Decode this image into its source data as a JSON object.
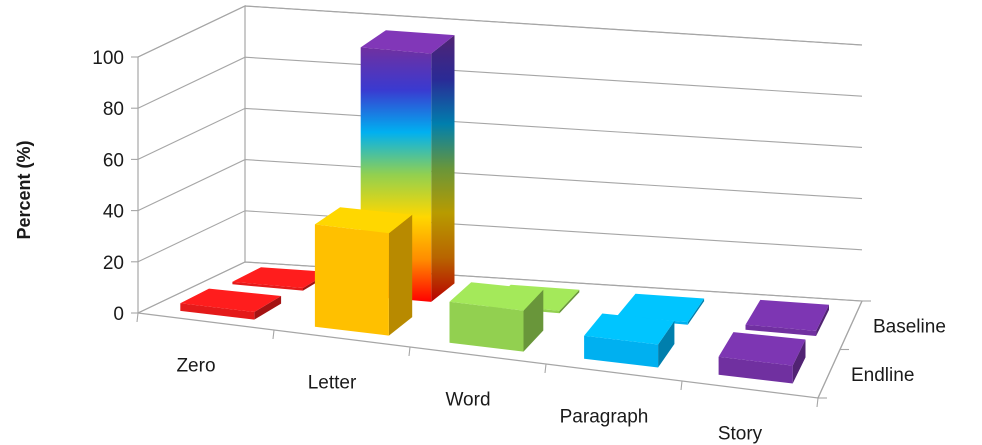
{
  "chart_data": {
    "type": "bar",
    "variant": "3d-column",
    "title": "",
    "xlabel": "",
    "ylabel": "Percent (%)",
    "ylim": [
      0,
      100
    ],
    "yticks": [
      "0",
      "20",
      "40",
      "60",
      "80",
      "100"
    ],
    "categories": [
      "Zero",
      "Letter",
      "Word",
      "Paragraph",
      "Story"
    ],
    "depth_axis": [
      "Baseline",
      "Endline"
    ],
    "grid": true,
    "legend": "none",
    "series": [
      {
        "name": "Endline",
        "values": [
          3,
          40,
          16,
          9,
          7
        ]
      },
      {
        "name": "Baseline",
        "values": [
          1,
          97,
          1,
          1,
          2
        ]
      }
    ],
    "colors": {
      "Zero": "#e41a1a",
      "Letter": "#ffc000",
      "Word": "#92d050",
      "Paragraph": "#00b0f0",
      "Story": "#7030a0",
      "gradient": [
        "#ff0000",
        "#ff8c00",
        "#ffd700",
        "#92d050",
        "#00b0f0",
        "#3a3ad0",
        "#7030a0"
      ],
      "gridline": "#a6a6a6"
    }
  }
}
